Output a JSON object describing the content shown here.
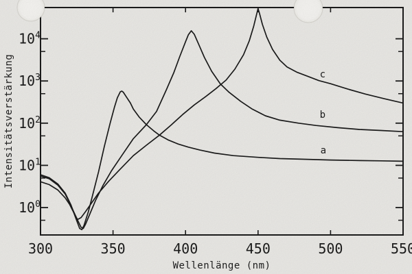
{
  "figure": {
    "paper_color": "#f0efeb",
    "ink_color": "#1c1c1c",
    "artifact_color": "#faf9f6"
  },
  "chart_data": {
    "type": "line",
    "title": "",
    "xlabel": "Wellenlänge (nm)",
    "ylabel": "Intensitätsverstärkung",
    "x_range": [
      300,
      550
    ],
    "y_scale": "log",
    "y_range": [
      0.22,
      55000
    ],
    "grid": false,
    "legend": "inline curve letters a, b, c",
    "x_axis": {
      "tick_labels": [
        "300",
        "350",
        "400",
        "450",
        "500",
        "550"
      ],
      "tick_values": [
        300,
        350,
        400,
        450,
        500,
        550
      ],
      "inner_tick_values": [
        350,
        400,
        450,
        500
      ]
    },
    "y_axis": {
      "tick_labels": [
        "10⁰",
        "10¹",
        "10²",
        "10³",
        "10⁴"
      ],
      "major_exponents": [
        0,
        1,
        2,
        3,
        4
      ],
      "minor_tick_values": [
        0.5,
        5,
        50,
        500,
        5000
      ]
    },
    "series": [
      {
        "name": "a",
        "peak_nm": 356,
        "peak_value": 575,
        "dip_nm": 328,
        "dip_value": 0.3,
        "label_text": "a",
        "label_at": [
          495,
          19
        ],
        "points": [
          [
            300,
            6.0
          ],
          [
            306,
            5.1
          ],
          [
            312,
            3.6
          ],
          [
            317,
            2.2
          ],
          [
            321,
            1.15
          ],
          [
            324,
            0.6
          ],
          [
            327,
            0.32
          ],
          [
            328.5,
            0.3
          ],
          [
            330,
            0.38
          ],
          [
            333,
            0.8
          ],
          [
            336,
            2.0
          ],
          [
            340,
            7
          ],
          [
            344,
            28
          ],
          [
            348,
            100
          ],
          [
            351,
            240
          ],
          [
            353,
            400
          ],
          [
            355,
            555
          ],
          [
            356,
            575
          ],
          [
            357,
            545
          ],
          [
            359,
            430
          ],
          [
            362,
            300
          ],
          [
            364,
            215
          ],
          [
            368,
            140
          ],
          [
            373,
            92
          ],
          [
            378,
            66
          ],
          [
            382,
            52
          ],
          [
            388,
            40
          ],
          [
            395,
            32
          ],
          [
            402,
            27
          ],
          [
            410,
            23
          ],
          [
            420,
            19.5
          ],
          [
            433,
            17
          ],
          [
            450,
            15.5
          ],
          [
            465,
            14.5
          ],
          [
            480,
            14
          ],
          [
            500,
            13.4
          ],
          [
            520,
            13
          ],
          [
            535,
            12.8
          ],
          [
            550,
            12.5
          ]
        ]
      },
      {
        "name": "b",
        "peak_nm": 404,
        "peak_value": 15500,
        "dip_nm": 329.5,
        "dip_value": 0.32,
        "label_text": "b",
        "label_at": [
          494.5,
          134
        ],
        "points": [
          [
            300,
            5.6
          ],
          [
            306,
            4.8
          ],
          [
            312,
            3.4
          ],
          [
            317,
            2.1
          ],
          [
            321,
            1.1
          ],
          [
            325,
            0.55
          ],
          [
            328,
            0.34
          ],
          [
            329.5,
            0.32
          ],
          [
            331,
            0.4
          ],
          [
            334,
            0.7
          ],
          [
            338,
            1.5
          ],
          [
            343,
            3.3
          ],
          [
            349,
            7.5
          ],
          [
            356,
            17
          ],
          [
            364,
            43
          ],
          [
            373,
            92
          ],
          [
            380,
            190
          ],
          [
            387,
            640
          ],
          [
            392,
            1600
          ],
          [
            396,
            3800
          ],
          [
            400,
            8500
          ],
          [
            402,
            12500
          ],
          [
            404,
            15500
          ],
          [
            406,
            12800
          ],
          [
            409,
            7500
          ],
          [
            413,
            3600
          ],
          [
            418,
            1700
          ],
          [
            424,
            850
          ],
          [
            430,
            540
          ],
          [
            438,
            330
          ],
          [
            446,
            215
          ],
          [
            455,
            150
          ],
          [
            465,
            118
          ],
          [
            478,
            100
          ],
          [
            490,
            88
          ],
          [
            505,
            78
          ],
          [
            520,
            71
          ],
          [
            535,
            67
          ],
          [
            550,
            63
          ]
        ]
      },
      {
        "name": "c",
        "peak_nm": 450,
        "peak_value": 52000,
        "dip_nm": 325.5,
        "dip_value": 0.52,
        "label_text": "c",
        "label_at": [
          494.5,
          1220
        ],
        "points": [
          [
            300,
            4.1
          ],
          [
            306,
            3.5
          ],
          [
            312,
            2.6
          ],
          [
            317,
            1.7
          ],
          [
            320,
            1.2
          ],
          [
            323,
            0.75
          ],
          [
            325.5,
            0.52
          ],
          [
            328,
            0.58
          ],
          [
            331,
            0.8
          ],
          [
            335,
            1.25
          ],
          [
            340,
            2.2
          ],
          [
            347,
            4.2
          ],
          [
            354,
            7.5
          ],
          [
            364,
            17
          ],
          [
            373,
            30
          ],
          [
            382,
            52
          ],
          [
            390,
            90
          ],
          [
            398,
            160
          ],
          [
            406,
            270
          ],
          [
            414,
            430
          ],
          [
            421,
            660
          ],
          [
            428,
            1050
          ],
          [
            434,
            1900
          ],
          [
            440,
            4200
          ],
          [
            444,
            9000
          ],
          [
            447,
            20000
          ],
          [
            449,
            38000
          ],
          [
            450,
            52000
          ],
          [
            451,
            40000
          ],
          [
            453,
            22000
          ],
          [
            456,
            11000
          ],
          [
            460,
            5600
          ],
          [
            465,
            3100
          ],
          [
            470,
            2150
          ],
          [
            477,
            1600
          ],
          [
            484,
            1300
          ],
          [
            492,
            1020
          ],
          [
            500,
            860
          ],
          [
            512,
            640
          ],
          [
            524,
            490
          ],
          [
            537,
            380
          ],
          [
            550,
            300
          ]
        ]
      }
    ]
  }
}
